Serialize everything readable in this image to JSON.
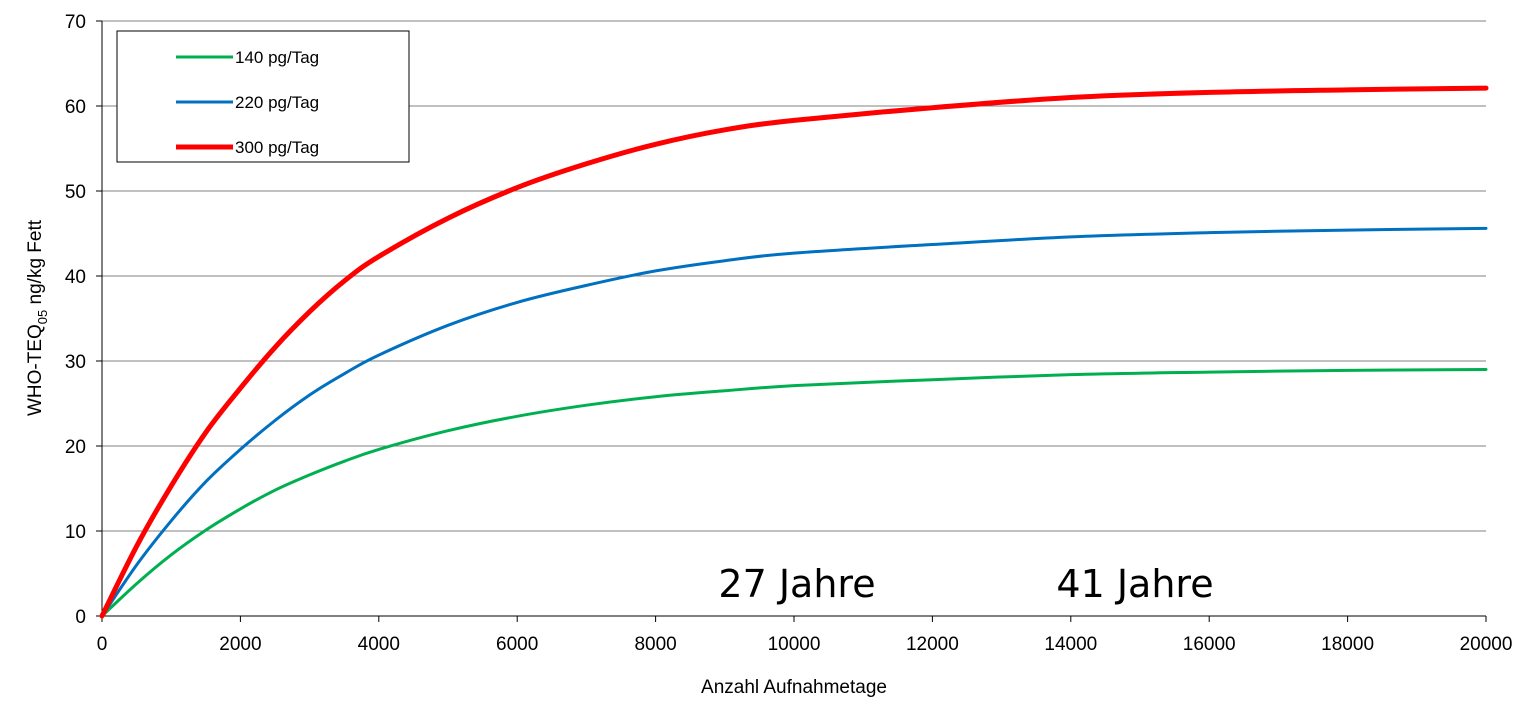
{
  "chart_data": {
    "type": "line",
    "title": "",
    "xlabel": "Anzahl Aufnahmetage",
    "ylabel": {
      "main": "WHO-TEQ",
      "subscript": "05",
      "rest": " ng/kg  Fett"
    },
    "xlim": [
      0,
      20000
    ],
    "ylim": [
      0,
      70
    ],
    "x_ticks": [
      0,
      2000,
      4000,
      6000,
      8000,
      10000,
      12000,
      14000,
      16000,
      18000,
      20000
    ],
    "y_ticks": [
      0,
      10,
      20,
      30,
      40,
      50,
      60,
      70
    ],
    "grid": "horizontal",
    "legend_position": "top-left",
    "annotations": [
      "27 Jahre",
      "41 Jahre"
    ],
    "series": [
      {
        "name": "140 pg/Tag",
        "color": "#00b050",
        "points": [
          [
            0,
            0
          ],
          [
            500,
            3.8
          ],
          [
            1000,
            7.2
          ],
          [
            1500,
            10.1
          ],
          [
            2000,
            12.6
          ],
          [
            2500,
            14.8
          ],
          [
            3000,
            16.6
          ],
          [
            3500,
            18.2
          ],
          [
            4000,
            19.6
          ],
          [
            5000,
            21.8
          ],
          [
            6000,
            23.5
          ],
          [
            7000,
            24.8
          ],
          [
            8000,
            25.8
          ],
          [
            9000,
            26.5
          ],
          [
            10000,
            27.1
          ],
          [
            12000,
            27.8
          ],
          [
            14000,
            28.4
          ],
          [
            16000,
            28.7
          ],
          [
            18000,
            28.9
          ],
          [
            20000,
            29.0
          ]
        ]
      },
      {
        "name": "220 pg/Tag",
        "color": "#0070c0",
        "points": [
          [
            0,
            0
          ],
          [
            500,
            6.0
          ],
          [
            1000,
            11.2
          ],
          [
            1500,
            15.8
          ],
          [
            2000,
            19.6
          ],
          [
            2500,
            23.0
          ],
          [
            3000,
            26.0
          ],
          [
            3500,
            28.5
          ],
          [
            4000,
            30.7
          ],
          [
            5000,
            34.2
          ],
          [
            6000,
            36.9
          ],
          [
            7000,
            38.9
          ],
          [
            8000,
            40.6
          ],
          [
            9000,
            41.8
          ],
          [
            10000,
            42.7
          ],
          [
            12000,
            43.7
          ],
          [
            14000,
            44.6
          ],
          [
            16000,
            45.1
          ],
          [
            18000,
            45.4
          ],
          [
            20000,
            45.6
          ]
        ]
      },
      {
        "name": "300 pg/Tag",
        "color": "#ff0000",
        "points": [
          [
            0,
            0
          ],
          [
            500,
            8.2
          ],
          [
            1000,
            15.3
          ],
          [
            1500,
            21.6
          ],
          [
            2000,
            26.8
          ],
          [
            2500,
            31.6
          ],
          [
            3000,
            35.8
          ],
          [
            3500,
            39.4
          ],
          [
            4000,
            42.3
          ],
          [
            5000,
            46.8
          ],
          [
            6000,
            50.4
          ],
          [
            7000,
            53.2
          ],
          [
            8000,
            55.5
          ],
          [
            9000,
            57.2
          ],
          [
            10000,
            58.3
          ],
          [
            12000,
            59.8
          ],
          [
            14000,
            61.0
          ],
          [
            16000,
            61.6
          ],
          [
            18000,
            61.9
          ],
          [
            20000,
            62.1
          ]
        ]
      }
    ]
  }
}
